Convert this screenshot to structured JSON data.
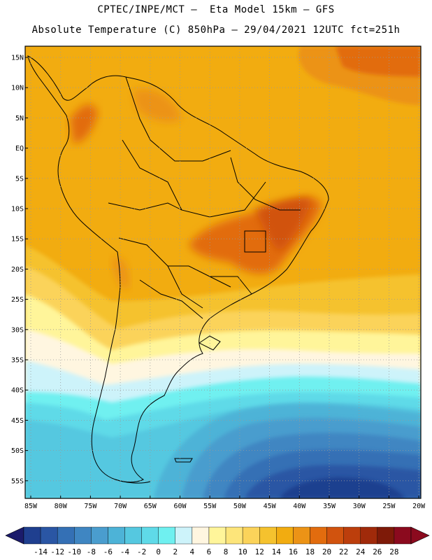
{
  "header": {
    "line1": "CPTEC/INPE/MCT –  Eta Model 15km – GFS",
    "line2": "Absolute Temperature (C) 850hPa – 29/04/2021 12UTC fct=251h"
  },
  "map": {
    "lat_labels": [
      "15N",
      "10N",
      "5N",
      "EQ",
      "5S",
      "10S",
      "15S",
      "20S",
      "25S",
      "30S",
      "35S",
      "40S",
      "45S",
      "50S",
      "55S"
    ],
    "lon_labels": [
      "85W",
      "80W",
      "75W",
      "70W",
      "65W",
      "60W",
      "55W",
      "50W",
      "45W",
      "40W",
      "35W",
      "30W",
      "25W",
      "20W"
    ],
    "gridlines": "dotted",
    "region": "South America"
  },
  "colorbar": {
    "levels": [
      "-14",
      "-12",
      "-10",
      "-8",
      "-6",
      "-4",
      "-2",
      "0",
      "2",
      "4",
      "6",
      "8",
      "10",
      "12",
      "14",
      "16",
      "18",
      "20",
      "22",
      "24",
      "26",
      "28"
    ],
    "colors": [
      "#1f3f8f",
      "#2a56a4",
      "#3470b5",
      "#3f86c2",
      "#4a9dce",
      "#4db3d7",
      "#55c8e0",
      "#5fdae8",
      "#6ff0f0",
      "#cdf3fa",
      "#fff6e0",
      "#fff59a",
      "#fde57a",
      "#fbd35a",
      "#f5c22e",
      "#f2ac10",
      "#ec9316",
      "#e26c0e",
      "#d1530e",
      "#bc3e0c",
      "#a02a0a",
      "#7e1a08",
      "#8b0a1e"
    ],
    "left_arrow_color": "#1b1b6b",
    "right_arrow_color": "#8b0a1e"
  }
}
